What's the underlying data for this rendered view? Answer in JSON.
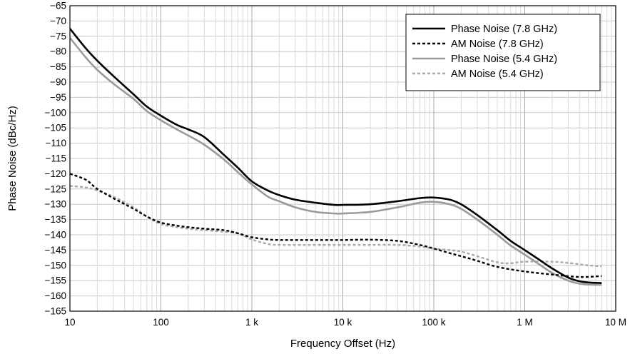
{
  "chart_data": {
    "type": "line",
    "title": "",
    "xlabel": "Frequency Offset (Hz)",
    "ylabel": "Phase Noise (dBc/Hz)",
    "xscale": "log",
    "xlim": [
      10,
      10000000
    ],
    "ylim": [
      -165,
      -65
    ],
    "x_ticks": [
      {
        "value": 10,
        "label": "10"
      },
      {
        "value": 100,
        "label": "100"
      },
      {
        "value": 1000,
        "label": "1 k"
      },
      {
        "value": 10000,
        "label": "10 k"
      },
      {
        "value": 100000,
        "label": "100 k"
      },
      {
        "value": 1000000,
        "label": "1 M"
      },
      {
        "value": 10000000,
        "label": "10 M"
      }
    ],
    "y_ticks": [
      -65,
      -70,
      -75,
      -80,
      -85,
      -90,
      -95,
      -100,
      -105,
      -110,
      -115,
      -120,
      -125,
      -130,
      -135,
      -140,
      -145,
      -150,
      -155,
      -160,
      -165
    ],
    "grid": true,
    "legend_position": "top-right",
    "series": [
      {
        "name": "Phase Noise (7.8 GHz)",
        "color": "#000000",
        "dash": "solid",
        "points": [
          [
            10,
            -72.5
          ],
          [
            15,
            -79
          ],
          [
            20,
            -83
          ],
          [
            30,
            -88
          ],
          [
            50,
            -94
          ],
          [
            70,
            -98
          ],
          [
            100,
            -101
          ],
          [
            150,
            -104
          ],
          [
            200,
            -105.5
          ],
          [
            300,
            -108
          ],
          [
            500,
            -114
          ],
          [
            700,
            -118
          ],
          [
            1000,
            -122.5
          ],
          [
            1500,
            -125.5
          ],
          [
            2000,
            -127
          ],
          [
            3000,
            -128.5
          ],
          [
            5000,
            -129.5
          ],
          [
            8000,
            -130.2
          ],
          [
            10000,
            -130.2
          ],
          [
            20000,
            -130
          ],
          [
            40000,
            -129
          ],
          [
            70000,
            -128
          ],
          [
            100000,
            -127.8
          ],
          [
            150000,
            -128.5
          ],
          [
            200000,
            -130
          ],
          [
            300000,
            -133.5
          ],
          [
            500000,
            -138.5
          ],
          [
            700000,
            -142
          ],
          [
            1000000,
            -145
          ],
          [
            1500000,
            -148.5
          ],
          [
            2000000,
            -151
          ],
          [
            3000000,
            -154
          ],
          [
            4000000,
            -155.2
          ],
          [
            5000000,
            -155.6
          ],
          [
            7000000,
            -155.8
          ]
        ]
      },
      {
        "name": "AM Noise (7.8 GHz)",
        "color": "#000000",
        "dash": "dashed",
        "points": [
          [
            10,
            -120
          ],
          [
            15,
            -122
          ],
          [
            20,
            -125
          ],
          [
            30,
            -128
          ],
          [
            50,
            -131.5
          ],
          [
            70,
            -134
          ],
          [
            100,
            -136
          ],
          [
            150,
            -137
          ],
          [
            200,
            -137.5
          ],
          [
            300,
            -138
          ],
          [
            500,
            -138.5
          ],
          [
            700,
            -139.5
          ],
          [
            1000,
            -140.8
          ],
          [
            1500,
            -141.5
          ],
          [
            2000,
            -141.7
          ],
          [
            5000,
            -141.7
          ],
          [
            10000,
            -141.7
          ],
          [
            20000,
            -141.6
          ],
          [
            40000,
            -142
          ],
          [
            70000,
            -143.3
          ],
          [
            100000,
            -144.5
          ],
          [
            150000,
            -146
          ],
          [
            200000,
            -147
          ],
          [
            300000,
            -148.5
          ],
          [
            500000,
            -150.5
          ],
          [
            1000000,
            -152
          ],
          [
            2000000,
            -153
          ],
          [
            4000000,
            -153.8
          ],
          [
            7000000,
            -153.5
          ]
        ]
      },
      {
        "name": "Phase Noise (5.4 GHz)",
        "color": "#9a9a9a",
        "dash": "solid",
        "points": [
          [
            10,
            -75.5
          ],
          [
            15,
            -82
          ],
          [
            20,
            -86
          ],
          [
            30,
            -90.5
          ],
          [
            50,
            -95.5
          ],
          [
            70,
            -99.5
          ],
          [
            100,
            -102.5
          ],
          [
            150,
            -105.5
          ],
          [
            200,
            -107.5
          ],
          [
            300,
            -110.5
          ],
          [
            500,
            -115.5
          ],
          [
            700,
            -119.5
          ],
          [
            1000,
            -123.5
          ],
          [
            1500,
            -127.5
          ],
          [
            2000,
            -129
          ],
          [
            3000,
            -131
          ],
          [
            5000,
            -132.5
          ],
          [
            8000,
            -133
          ],
          [
            10000,
            -133
          ],
          [
            20000,
            -132.5
          ],
          [
            40000,
            -131
          ],
          [
            70000,
            -129.5
          ],
          [
            100000,
            -129.2
          ],
          [
            150000,
            -130
          ],
          [
            200000,
            -131.5
          ],
          [
            300000,
            -135
          ],
          [
            500000,
            -140
          ],
          [
            700000,
            -143.5
          ],
          [
            1000000,
            -146.5
          ],
          [
            1500000,
            -150
          ],
          [
            2000000,
            -152.5
          ],
          [
            3000000,
            -155
          ],
          [
            4000000,
            -156
          ],
          [
            5000000,
            -156.3
          ],
          [
            7000000,
            -156.4
          ]
        ]
      },
      {
        "name": "AM Noise (5.4 GHz)",
        "color": "#a8a8a8",
        "dash": "dashed",
        "points": [
          [
            10,
            -124
          ],
          [
            15,
            -124.5
          ],
          [
            20,
            -125.5
          ],
          [
            30,
            -127.5
          ],
          [
            50,
            -131
          ],
          [
            70,
            -134
          ],
          [
            100,
            -136.5
          ],
          [
            150,
            -137.5
          ],
          [
            200,
            -138
          ],
          [
            300,
            -138.5
          ],
          [
            500,
            -139
          ],
          [
            700,
            -139.5
          ],
          [
            1000,
            -141.5
          ],
          [
            1500,
            -143
          ],
          [
            2000,
            -143.3
          ],
          [
            5000,
            -143.3
          ],
          [
            10000,
            -143.3
          ],
          [
            20000,
            -143.3
          ],
          [
            40000,
            -143.3
          ],
          [
            70000,
            -143.8
          ],
          [
            100000,
            -144.5
          ],
          [
            150000,
            -145
          ],
          [
            200000,
            -145.5
          ],
          [
            300000,
            -147
          ],
          [
            500000,
            -149
          ],
          [
            700000,
            -149.3
          ],
          [
            1000000,
            -148.8
          ],
          [
            2000000,
            -148.8
          ],
          [
            3000000,
            -149.2
          ],
          [
            5000000,
            -150
          ],
          [
            7000000,
            -150.3
          ]
        ]
      }
    ]
  }
}
